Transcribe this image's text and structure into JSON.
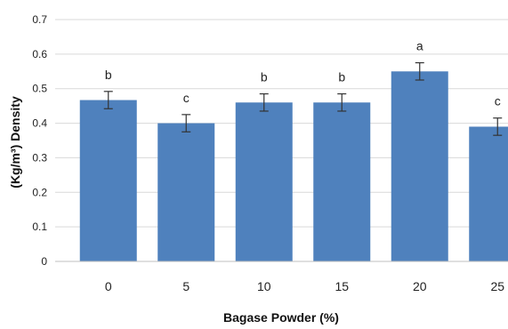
{
  "chart_data": {
    "type": "bar",
    "title": "",
    "xlabel": "Bagase Powder (%)",
    "ylabel": "(Kg/m³) Density",
    "categories": [
      "0",
      "5",
      "10",
      "15",
      "20",
      "25"
    ],
    "values": [
      0.467,
      0.4,
      0.46,
      0.46,
      0.55,
      0.39
    ],
    "error": [
      0.025,
      0.025,
      0.025,
      0.025,
      0.025,
      0.025
    ],
    "significance": [
      "b",
      "c",
      "b",
      "b",
      "a",
      "c"
    ],
    "ylim": [
      0,
      0.7
    ],
    "yticks": [
      "0",
      "0.1",
      "0.2",
      "0.3",
      "0.4",
      "0.5",
      "0.6",
      "0.7"
    ],
    "grid": "horizontal",
    "legend": "none",
    "colors": {
      "bar": "#4f81bd",
      "gridline": "#d9d9d9",
      "axis": "#bfbfbf",
      "error_bar": "#333333"
    }
  }
}
